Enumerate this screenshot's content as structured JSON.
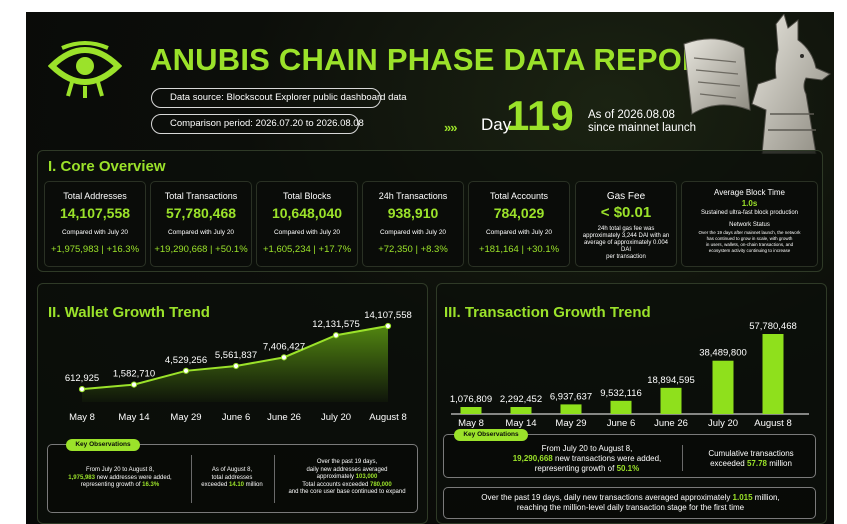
{
  "header": {
    "title": "ANUBIS CHAIN PHASE DATA REPORT",
    "data_source": "Data source: Blockscout Explorer public dashboard data",
    "comparison_period": "Comparison period: 2026.07.20 to 2026.08.08",
    "chevrons": "»»",
    "day_label": "Day",
    "day_number": "119",
    "as_of_line1": "As of 2026.08.08",
    "as_of_line2": "since mainnet launch"
  },
  "core": {
    "title": "I. Core Overview",
    "metrics": [
      {
        "label": "Total Addresses",
        "value": "14,107,558",
        "compare": "Compared with July 20",
        "change": "+1,975,983 | +16.3%"
      },
      {
        "label": "Total Transactions",
        "value": "57,780,468",
        "compare": "Compared with July 20",
        "change": "+19,290,668 | +50.1%"
      },
      {
        "label": "Total Blocks",
        "value": "10,648,040",
        "compare": "Compared with July 20",
        "change": "+1,605,234 | +17.7%"
      },
      {
        "label": "24h Transactions",
        "value": "938,910",
        "compare": "Compared with July 20",
        "change": "+72,350 | +8.3%"
      },
      {
        "label": "Total Accounts",
        "value": "784,029",
        "compare": "Compared with July 20",
        "change": "+181,164 | +30.1%"
      }
    ],
    "gas": {
      "label": "Gas Fee",
      "value": "< $0.01",
      "note_line1": "24h total gas fee was",
      "note_line2": "approximately 3,244 DAI with an",
      "note_line3": "average of approximately 0.004 DAI",
      "note_line4": "per transaction"
    },
    "block_time": {
      "label": "Average Block Time",
      "value": "1.0s",
      "sub": "Sustained ultra-fast block production",
      "status_title": "Network Status",
      "status_line1": "Over the 19 days after mainnet launch, the network",
      "status_line2": "has continued to grow in scale, with growth",
      "status_line3": "in users, wallets, on-chain transactions, and",
      "status_line4": "ecosystem activity continuing to increase"
    }
  },
  "wallet": {
    "title": "II. Wallet Growth Trend",
    "obs_tag": "Key Observations",
    "obs1_pre": "From July 20 to August 8,",
    "obs1_hl1": "1,975,983",
    "obs1_mid": " new addresses were added,",
    "obs1_pre2": "representing growth of ",
    "obs1_hl2": "16.3%",
    "obs2_line1": "As of August 8,",
    "obs2_line2": "total addresses",
    "obs2_pre": "exceeded ",
    "obs2_hl": "14.10",
    "obs2_post": " million",
    "obs3_line1": "Over the past 19 days,",
    "obs3_line2": "daily new addresses averaged",
    "obs3_line3a": "approximately ",
    "obs3_hl1": "103,000",
    "obs3_line4a": "Total accounts exceeded ",
    "obs3_hl2": "780,000",
    "obs3_line5": "and the core user base continued to expand"
  },
  "transactions": {
    "title": "III. Transaction Growth Trend",
    "obs_tag": "Key Observations",
    "obs1_line1": "From July 20 to August 8,",
    "obs1_hl1": "19,290,668",
    "obs1_line2": " new transactions were added,",
    "obs1_line3a": "representing growth of ",
    "obs1_hl2": "50.1%",
    "obs2_line1": "Cumulative transactions",
    "obs2_pre": "exceeded ",
    "obs2_hl": "57.78",
    "obs2_post": " million",
    "obs3_pre": "Over the past 19 days, daily new transactions averaged approximately ",
    "obs3_hl": "1.015",
    "obs3_post": " million,",
    "obs3_line2": "reaching the million-level daily transaction stage for the first time"
  },
  "chart_data": [
    {
      "type": "area",
      "title": "II. Wallet Growth Trend",
      "categories": [
        "May 8",
        "May 14",
        "May 29",
        "June 6",
        "June 26",
        "July 20",
        "August 8"
      ],
      "values": [
        612925,
        1582710,
        4529256,
        5561837,
        7406427,
        12131575,
        14107558
      ],
      "labels": [
        "612,925",
        "1,582,710",
        "4,529,256",
        "5,561,837",
        "7,406,427",
        "12,131,575",
        "14,107,558"
      ],
      "grid": false,
      "legend": "none",
      "colors": {
        "line": "#9be22a",
        "fill": "#5e9a12"
      }
    },
    {
      "type": "bar",
      "title": "III. Transaction Growth Trend",
      "categories": [
        "May 8",
        "May 14",
        "May 29",
        "June 6",
        "June 26",
        "July 20",
        "August 8"
      ],
      "values": [
        1076809,
        2292452,
        6937637,
        9532116,
        18894595,
        38489800,
        57780468
      ],
      "labels": [
        "1,076,809",
        "2,292,452",
        "6,937,637",
        "9,532,116",
        "18,894,595",
        "38,489,800",
        "57,780,468"
      ],
      "grid": false,
      "legend": "none",
      "colors": {
        "bar": "#8fe01c"
      }
    }
  ]
}
